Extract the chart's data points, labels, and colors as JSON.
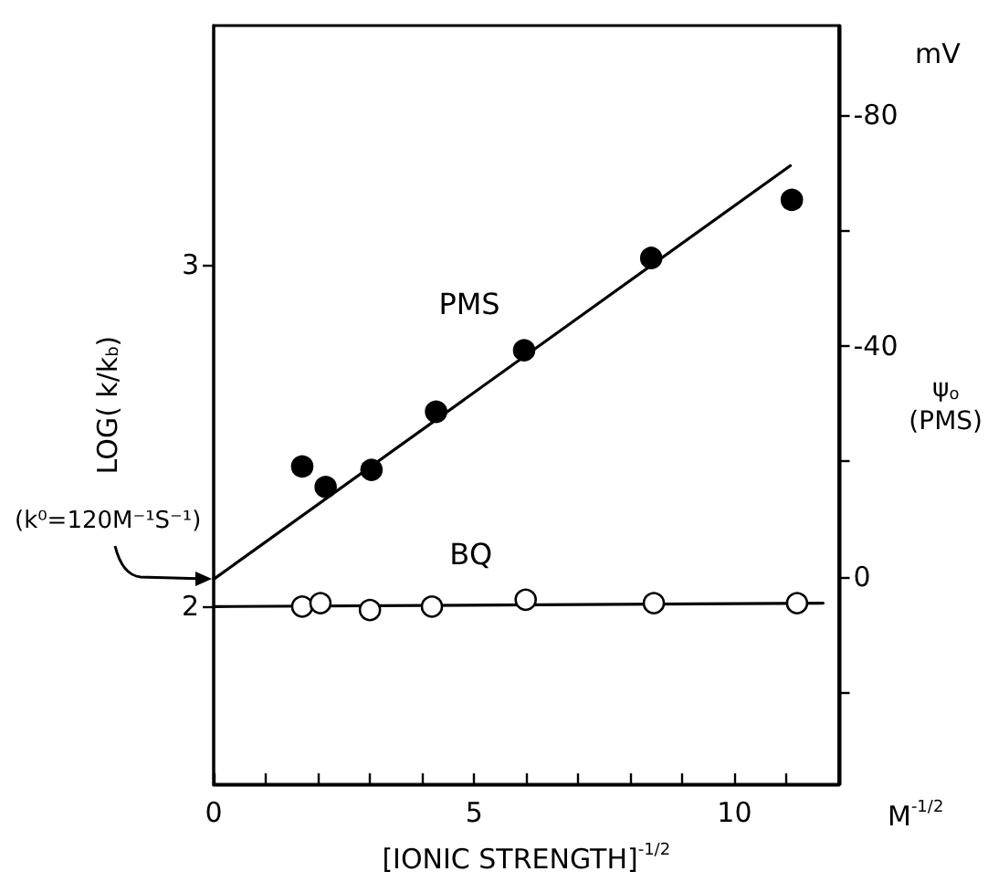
{
  "chart_data": {
    "type": "scatter",
    "xlabel": "[IONIC STRENGTH]$^{-1/2}$",
    "ylabel": "LOG( k/k$_{b}$)",
    "y2label": "ψ$_{o}$\n(PMS)",
    "annotations": [
      "mV",
      {
        "text": "(k⁰=120M⁻¹S⁻¹)",
        "x": 0,
        "y": 2.08
      },
      "M$^{-1/2}$"
    ],
    "series": [
      {
        "name": "PMS",
        "color": "#000000",
        "marker": "circle",
        "x": [
          1.7,
          2.15,
          3.03,
          4.27,
          5.96,
          8.4,
          11.1
        ],
        "values": [
          2.41,
          2.35,
          2.4,
          2.57,
          2.75,
          3.02,
          3.19
        ]
      },
      {
        "name": "BQ",
        "color": "#ffffff",
        "marker": "circle",
        "x": [
          1.7,
          2.05,
          3.0,
          4.19,
          5.99,
          8.45,
          11.2
        ],
        "values": [
          2.0,
          2.01,
          1.99,
          2.0,
          2.02,
          2.01,
          2.01
        ]
      },
      {
        "type": "line",
        "color": "#000000",
        "marker": "none",
        "x": [
          0,
          11.07
        ],
        "values": [
          2.08,
          3.29
        ]
      },
      {
        "type": "line",
        "color": "#000000",
        "marker": "none",
        "x": [
          0,
          11.7
        ],
        "values": [
          2.0,
          2.01
        ]
      }
    ],
    "xlim": [
      0,
      12
    ],
    "xticks": [
      0,
      {
        "value": 1,
        "label": null
      },
      {
        "value": 2,
        "label": null
      },
      {
        "value": 3,
        "label": null
      },
      {
        "value": 4,
        "label": null
      },
      5,
      {
        "value": 6,
        "label": null
      },
      {
        "value": 7,
        "label": null
      },
      {
        "value": 8,
        "label": null
      },
      {
        "value": 9,
        "label": null
      },
      10,
      {
        "value": 11,
        "label": null
      }
    ],
    "ylim": [
      1.48,
      3.7
    ],
    "yticks": [
      2,
      3
    ],
    "y2lim": [
      36,
      -95.5
    ],
    "y2ticks": [
      {
        "value": 20,
        "label": null
      },
      0,
      {
        "value": -20,
        "label": null
      },
      -40,
      {
        "value": -60,
        "label": null
      },
      -80
    ],
    "grid": false,
    "legend": false
  }
}
